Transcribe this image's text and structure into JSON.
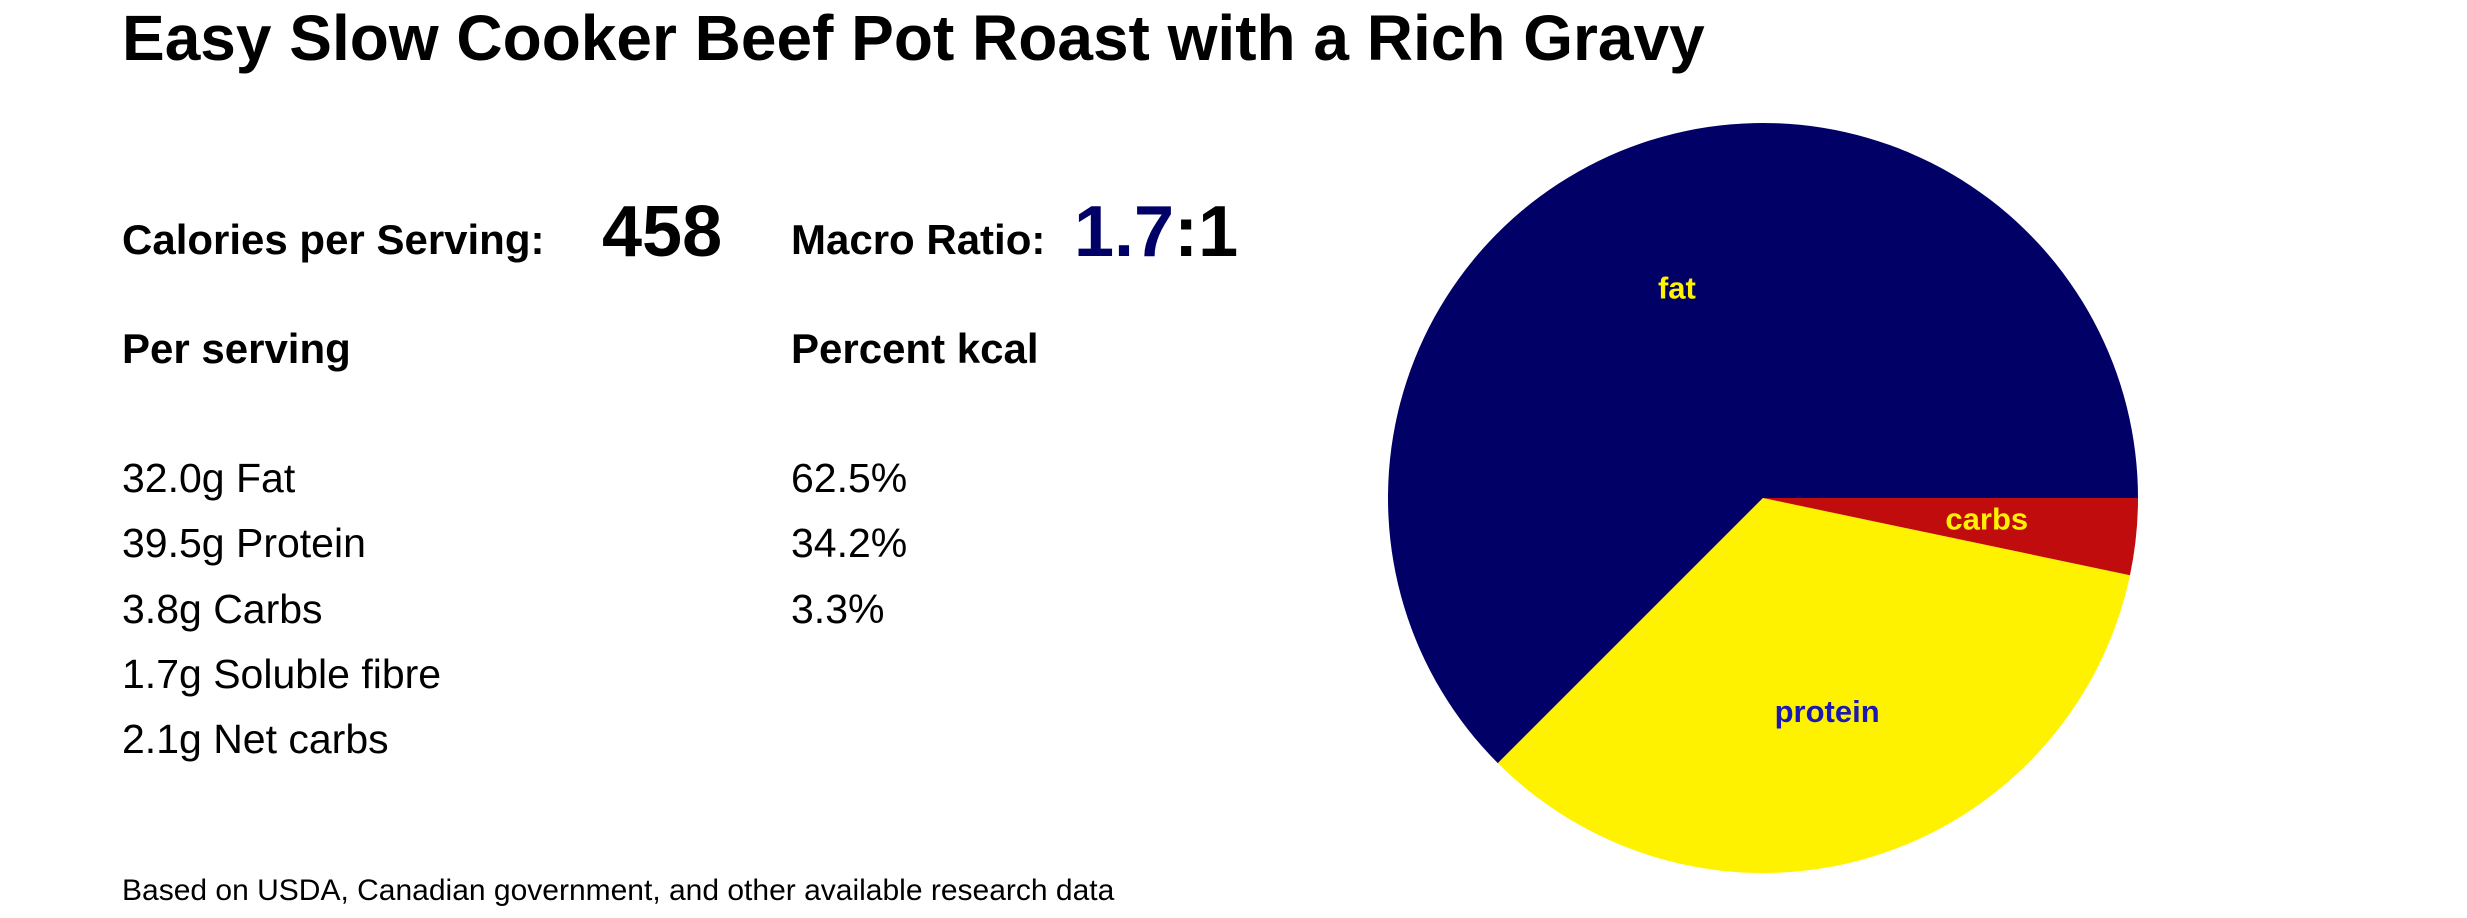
{
  "title": "Easy Slow Cooker Beef Pot Roast with a Rich Gravy",
  "calories": {
    "label": "Calories per Serving:",
    "value": 458
  },
  "macro_ratio": {
    "label": "Macro Ratio:",
    "ratio": "1.7",
    "rest": ":1"
  },
  "table": {
    "headers": [
      "Per serving",
      "Percent kcal"
    ],
    "rows": [
      [
        "32.0g Fat",
        "62.5%"
      ],
      [
        "39.5g Protein",
        "34.2%"
      ],
      [
        "3.8g Carbs",
        "3.3%"
      ],
      [
        "1.7g Soluble fibre",
        null
      ],
      [
        "2.1g Net carbs",
        null
      ]
    ]
  },
  "footnote": "Based on USDA, Canadian government, and other available research data",
  "chart_data": {
    "type": "pie",
    "categories": [
      "fat",
      "protein",
      "carbs"
    ],
    "values": [
      62.5,
      34.2,
      3.3
    ],
    "colors": [
      "#000066",
      "#fff200",
      "#c00c0c"
    ],
    "label_colors": [
      "#fff200",
      "#1a1ab0",
      "#fff200"
    ]
  }
}
